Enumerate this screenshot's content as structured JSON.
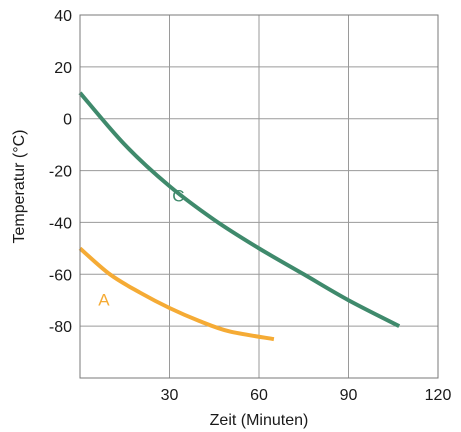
{
  "chart_data": {
    "type": "line",
    "xlabel": "Zeit (Minuten)",
    "ylabel": "Temperatur (°C)",
    "xlim": [
      0,
      120
    ],
    "ylim": [
      -100,
      40
    ],
    "x_ticks": [
      30,
      60,
      90,
      120
    ],
    "y_ticks": [
      40,
      20,
      0,
      -20,
      -40,
      -60,
      -80
    ],
    "grid": true,
    "series": [
      {
        "name": "C",
        "color": "#3f8a6c",
        "x": [
          0,
          15,
          30,
          45,
          60,
          75,
          90,
          107
        ],
        "y": [
          10,
          -10,
          -26,
          -39,
          -50,
          -60,
          -70,
          -80
        ]
      },
      {
        "name": "A",
        "color": "#f5ab35",
        "x": [
          0,
          10,
          20,
          30,
          40,
          50,
          65
        ],
        "y": [
          -50,
          -60,
          -67,
          -73,
          -78,
          -82,
          -85
        ]
      }
    ]
  }
}
